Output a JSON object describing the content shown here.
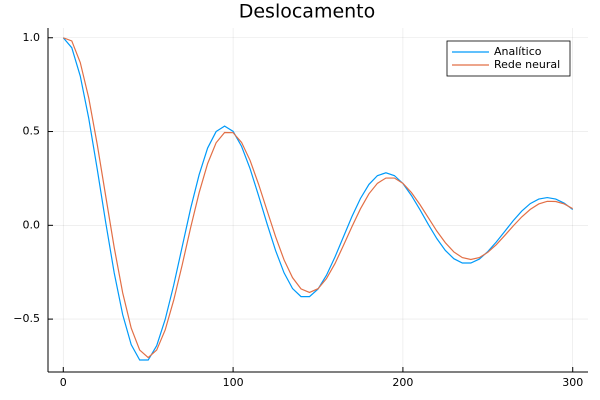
{
  "chart_data": {
    "type": "line",
    "title": "Deslocamento",
    "x": [
      0,
      5,
      10,
      15,
      20,
      25,
      30,
      35,
      40,
      45,
      50,
      55,
      60,
      65,
      70,
      75,
      80,
      85,
      90,
      95,
      100,
      105,
      110,
      115,
      120,
      125,
      130,
      135,
      140,
      145,
      150,
      155,
      160,
      165,
      170,
      175,
      180,
      185,
      190,
      195,
      200,
      205,
      210,
      215,
      220,
      225,
      230,
      235,
      240,
      245,
      250,
      255,
      260,
      265,
      270,
      275,
      280,
      285,
      290,
      295,
      300
    ],
    "series": [
      {
        "name": "Analítico",
        "color": "#009af9",
        "values": [
          1.0,
          0.947,
          0.796,
          0.57,
          0.299,
          0.014,
          -0.254,
          -0.477,
          -0.636,
          -0.718,
          -0.718,
          -0.642,
          -0.502,
          -0.32,
          -0.115,
          0.09,
          0.27,
          0.412,
          0.5,
          0.529,
          0.501,
          0.421,
          0.302,
          0.158,
          0.008,
          -0.134,
          -0.253,
          -0.337,
          -0.38,
          -0.38,
          -0.34,
          -0.266,
          -0.169,
          -0.061,
          0.047,
          0.143,
          0.218,
          0.265,
          0.28,
          0.265,
          0.223,
          0.159,
          0.084,
          0.004,
          -0.071,
          -0.134,
          -0.178,
          -0.201,
          -0.201,
          -0.18,
          -0.14,
          -0.089,
          -0.032,
          0.025,
          0.076,
          0.116,
          0.14,
          0.148,
          0.14,
          0.118,
          0.084
        ]
      },
      {
        "name": "Rede neural",
        "color": "#e26f46",
        "values": [
          1.0,
          0.983,
          0.868,
          0.679,
          0.431,
          0.155,
          -0.119,
          -0.361,
          -0.548,
          -0.665,
          -0.705,
          -0.665,
          -0.558,
          -0.4,
          -0.212,
          -0.012,
          0.174,
          0.329,
          0.44,
          0.495,
          0.494,
          0.442,
          0.346,
          0.219,
          0.079,
          -0.06,
          -0.184,
          -0.279,
          -0.339,
          -0.358,
          -0.338,
          -0.284,
          -0.204,
          -0.107,
          -0.007,
          0.088,
          0.168,
          0.224,
          0.252,
          0.252,
          0.224,
          0.175,
          0.111,
          0.04,
          -0.031,
          -0.093,
          -0.142,
          -0.172,
          -0.182,
          -0.172,
          -0.144,
          -0.103,
          -0.054,
          -0.003,
          0.045,
          0.085,
          0.114,
          0.128,
          0.127,
          0.114,
          0.089
        ]
      }
    ],
    "xlim": [
      -9,
      309
    ],
    "ylim": [
      -0.782,
      1.052
    ],
    "xticks": [
      0,
      100,
      200,
      300
    ],
    "yticks": [
      {
        "value": -0.5,
        "label": "−0.5"
      },
      {
        "value": 0,
        "label": "0.0"
      },
      0.5,
      {
        "value": 1,
        "label": "1.0"
      }
    ],
    "grid": true,
    "legend": "top-right"
  }
}
